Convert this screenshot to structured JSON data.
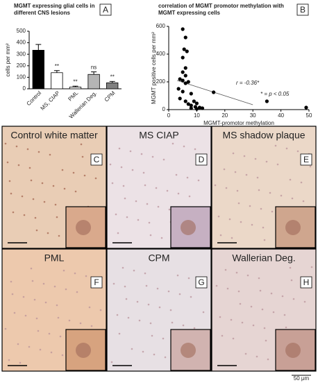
{
  "chart_data": [
    {
      "type": "bar",
      "title": "MGMT expressing glial cells in different CNS lesions",
      "panel_label": "A",
      "y_label": "cells per mm²",
      "categories": [
        "Control",
        "MS, CIAP",
        "PML",
        "Wallerian Deg.",
        "CPM"
      ],
      "values": [
        335,
        140,
        15,
        125,
        52
      ],
      "errors": [
        50,
        18,
        8,
        22,
        12
      ],
      "significance": [
        null,
        "**",
        "**",
        "ns",
        "**"
      ],
      "colors": [
        "#000000",
        "#ffffff",
        "#ffffff",
        "#b5b5b5",
        "#808080"
      ],
      "ylim": [
        0,
        500
      ],
      "yticks": [
        0,
        100,
        200,
        300,
        400,
        500
      ]
    },
    {
      "type": "scatter",
      "title": "correlation of MGMT promotor methylation with MGMT expressing cells",
      "panel_label": "B",
      "x_label": "MGMT-promotor methylation",
      "y_label": "MGMT positive cells per mm²",
      "x": [
        5,
        6,
        5.5,
        6.5,
        5,
        6,
        5,
        6,
        4,
        5,
        7,
        6,
        3.5,
        5,
        8,
        4,
        6,
        7,
        8,
        9,
        9.5,
        10,
        11,
        12,
        8,
        16,
        35,
        49,
        10
      ],
      "y": [
        580,
        520,
        435,
        420,
        375,
        300,
        270,
        245,
        220,
        210,
        200,
        190,
        150,
        130,
        115,
        80,
        60,
        40,
        30,
        60,
        20,
        45,
        15,
        10,
        10,
        125,
        60,
        15,
        5
      ],
      "color": "#000000",
      "trendline": {
        "x": [
          3,
          30
        ],
        "y": [
          210,
          35
        ]
      },
      "annotations": [
        "r = -0.36*",
        "* = p < 0.05"
      ],
      "xlim": [
        0,
        50
      ],
      "xticks": [
        0,
        10,
        20,
        30,
        40,
        50
      ],
      "ylim": [
        0,
        600
      ],
      "yticks": [
        0,
        200,
        400,
        600
      ]
    }
  ],
  "panels": [
    {
      "title": "Control white matter",
      "label": "C"
    },
    {
      "title": "MS CIAP",
      "label": "D"
    },
    {
      "title": "MS shadow plaque",
      "label": "E"
    },
    {
      "title": "PML",
      "label": "F"
    },
    {
      "title": "CPM",
      "label": "G"
    },
    {
      "title": "Wallerian Deg.",
      "label": "H"
    }
  ],
  "scale_bar": "50 μm"
}
